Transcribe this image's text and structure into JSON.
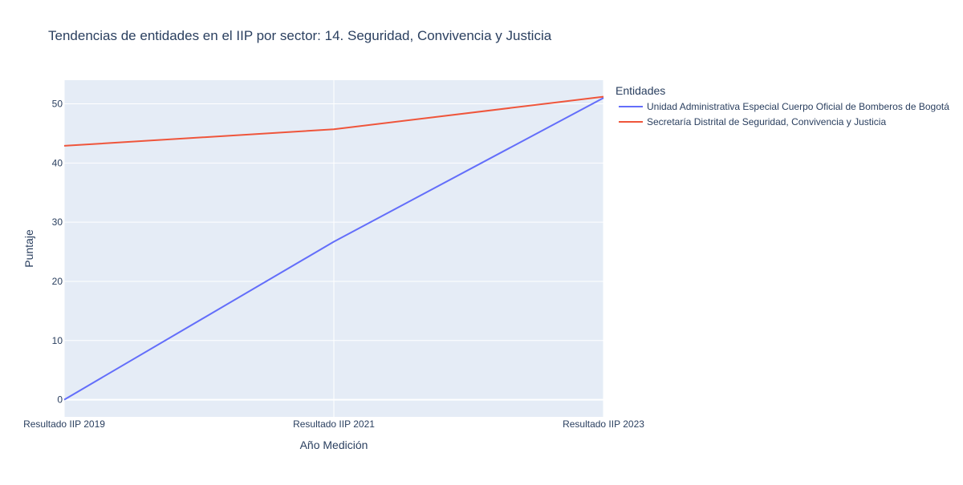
{
  "chart_data": {
    "type": "line",
    "title": "Tendencias de entidades en el IIP por sector: 14. Seguridad, Convivencia y Justicia",
    "xlabel": "Año Medición",
    "ylabel": "Puntaje",
    "categories": [
      "Resultado IIP 2019",
      "Resultado IIP 2021",
      "Resultado IIP 2023"
    ],
    "yticks": [
      0,
      10,
      20,
      30,
      40,
      50
    ],
    "ylim": [
      -2.9,
      54
    ],
    "grid": true,
    "legend": {
      "title": "Entidades",
      "placement": "right"
    },
    "series": [
      {
        "name": "Unidad Administrativa Especial Cuerpo Oficial de Bomberos de Bogotá",
        "color": "#636efa",
        "values": [
          0,
          26.7,
          51
        ]
      },
      {
        "name": "Secretaría Distrital de Seguridad, Convivencia y Justicia",
        "color": "#ef553b",
        "values": [
          42.9,
          45.7,
          51.2
        ]
      }
    ],
    "colors": {
      "plot_bg": "#e5ecf6",
      "grid": "#ffffff",
      "text": "#2a3f5f",
      "tick_text": "#2a3f5f"
    }
  }
}
